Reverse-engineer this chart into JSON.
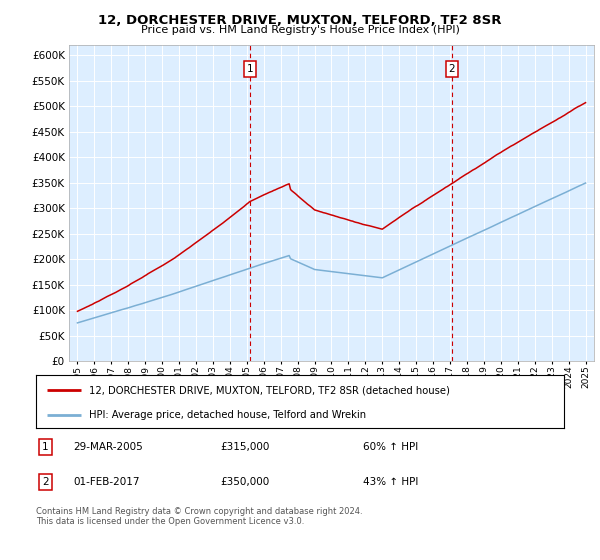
{
  "title": "12, DORCHESTER DRIVE, MUXTON, TELFORD, TF2 8SR",
  "subtitle": "Price paid vs. HM Land Registry's House Price Index (HPI)",
  "legend_line1": "12, DORCHESTER DRIVE, MUXTON, TELFORD, TF2 8SR (detached house)",
  "legend_line2": "HPI: Average price, detached house, Telford and Wrekin",
  "sale1_date": "29-MAR-2005",
  "sale1_price": 315000,
  "sale1_pct": "60% ↑ HPI",
  "sale2_date": "01-FEB-2017",
  "sale2_price": 350000,
  "sale2_pct": "43% ↑ HPI",
  "footer": "Contains HM Land Registry data © Crown copyright and database right 2024.\nThis data is licensed under the Open Government Licence v3.0.",
  "hpi_color": "#7bafd4",
  "price_color": "#cc0000",
  "bg_color": "#ddeeff",
  "vline_color": "#cc0000",
  "ylim": [
    0,
    620000
  ],
  "yticks": [
    0,
    50000,
    100000,
    150000,
    200000,
    250000,
    300000,
    350000,
    400000,
    450000,
    500000,
    550000,
    600000
  ],
  "year_start": 1995,
  "year_end": 2025,
  "sale1_year_float": 2005.2,
  "sale2_year_float": 2017.1
}
